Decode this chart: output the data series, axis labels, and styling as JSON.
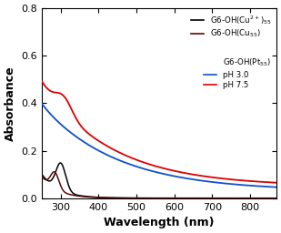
{
  "xlim": [
    250,
    870
  ],
  "ylim": [
    0.0,
    0.8
  ],
  "xlabel": "Wavelength (nm)",
  "ylabel": "Absorbance",
  "xticks": [
    300,
    400,
    500,
    600,
    700,
    800
  ],
  "yticks": [
    0.0,
    0.2,
    0.4,
    0.6,
    0.8
  ],
  "bg_color": "#ffffff",
  "line_colors": {
    "cu2plus": "#000000",
    "cu55": "#5a0808",
    "pt_blue": "#1050cc",
    "pt_red": "#dd0000"
  },
  "legend_labels": {
    "cu2plus": "G6-OH(Cu$^{2+}$)$_{55}$",
    "cu55": "G6-OH(Cu$_{55}$)",
    "pt_header": "G6-OH(Pt$_{55}$)",
    "ph30": "pH 3.0",
    "ph75": "pH 7.5"
  },
  "figsize": [
    3.09,
    2.56
  ],
  "dpi": 100
}
